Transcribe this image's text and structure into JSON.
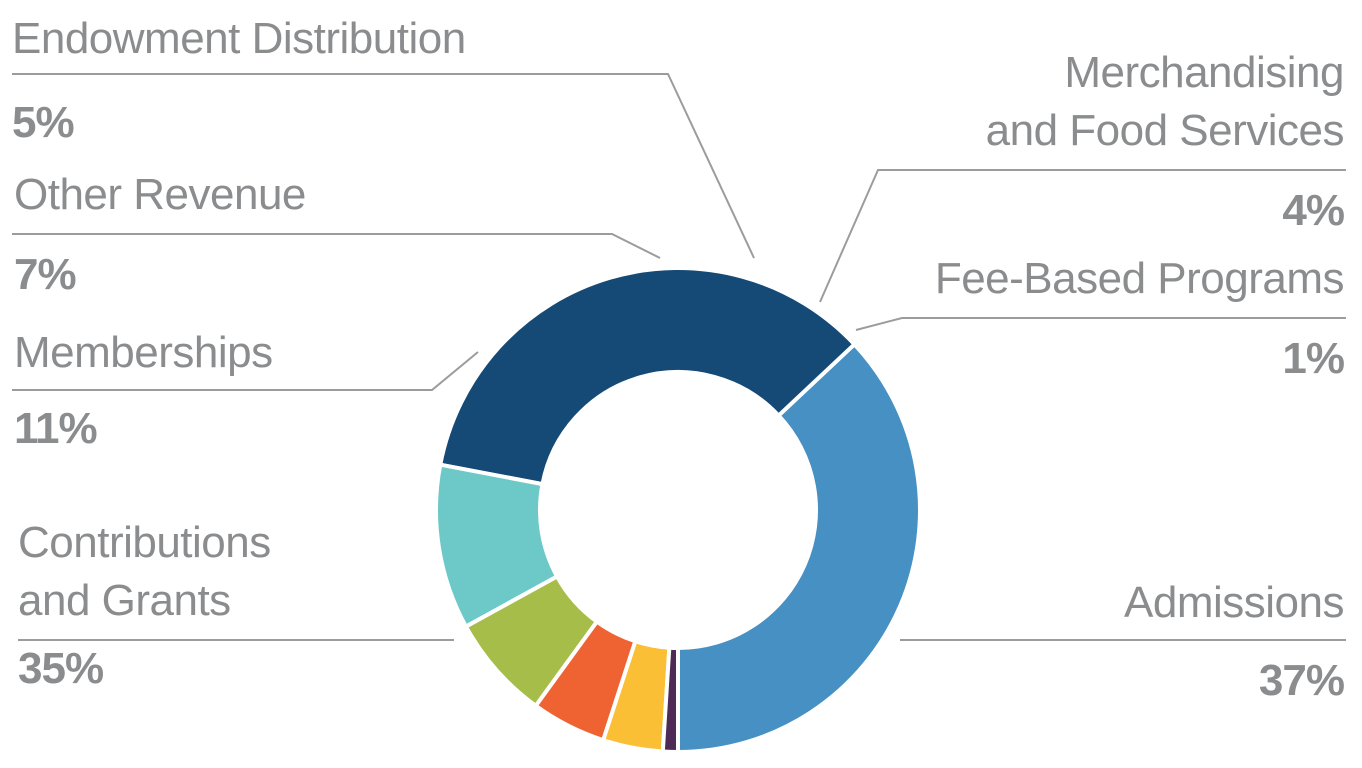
{
  "chart_data": {
    "type": "pie",
    "donut": true,
    "slices": [
      {
        "label": "Admissions",
        "pct_label": "37%",
        "value": 37,
        "color": "#4790c4"
      },
      {
        "label": "Contributions\nand Grants",
        "pct_label": "35%",
        "value": 35,
        "color": "#154a77"
      },
      {
        "label": "Memberships",
        "pct_label": "11%",
        "value": 11,
        "color": "#6dc8c8"
      },
      {
        "label": "Other Revenue",
        "pct_label": "7%",
        "value": 7,
        "color": "#a6bd49"
      },
      {
        "label": "Endowment Distribution",
        "pct_label": "5%",
        "value": 5,
        "color": "#ef6332"
      },
      {
        "label": "Merchandising\nand Food Services",
        "pct_label": "4%",
        "value": 4,
        "color": "#fbbf35"
      },
      {
        "label": "Fee-Based Programs",
        "pct_label": "1%",
        "value": 1,
        "color": "#4e2a56"
      }
    ],
    "legend": "callout labels with leader lines",
    "colors": {
      "label_text": "#8a8c8e",
      "leader_line": "#9a9c9e"
    }
  }
}
